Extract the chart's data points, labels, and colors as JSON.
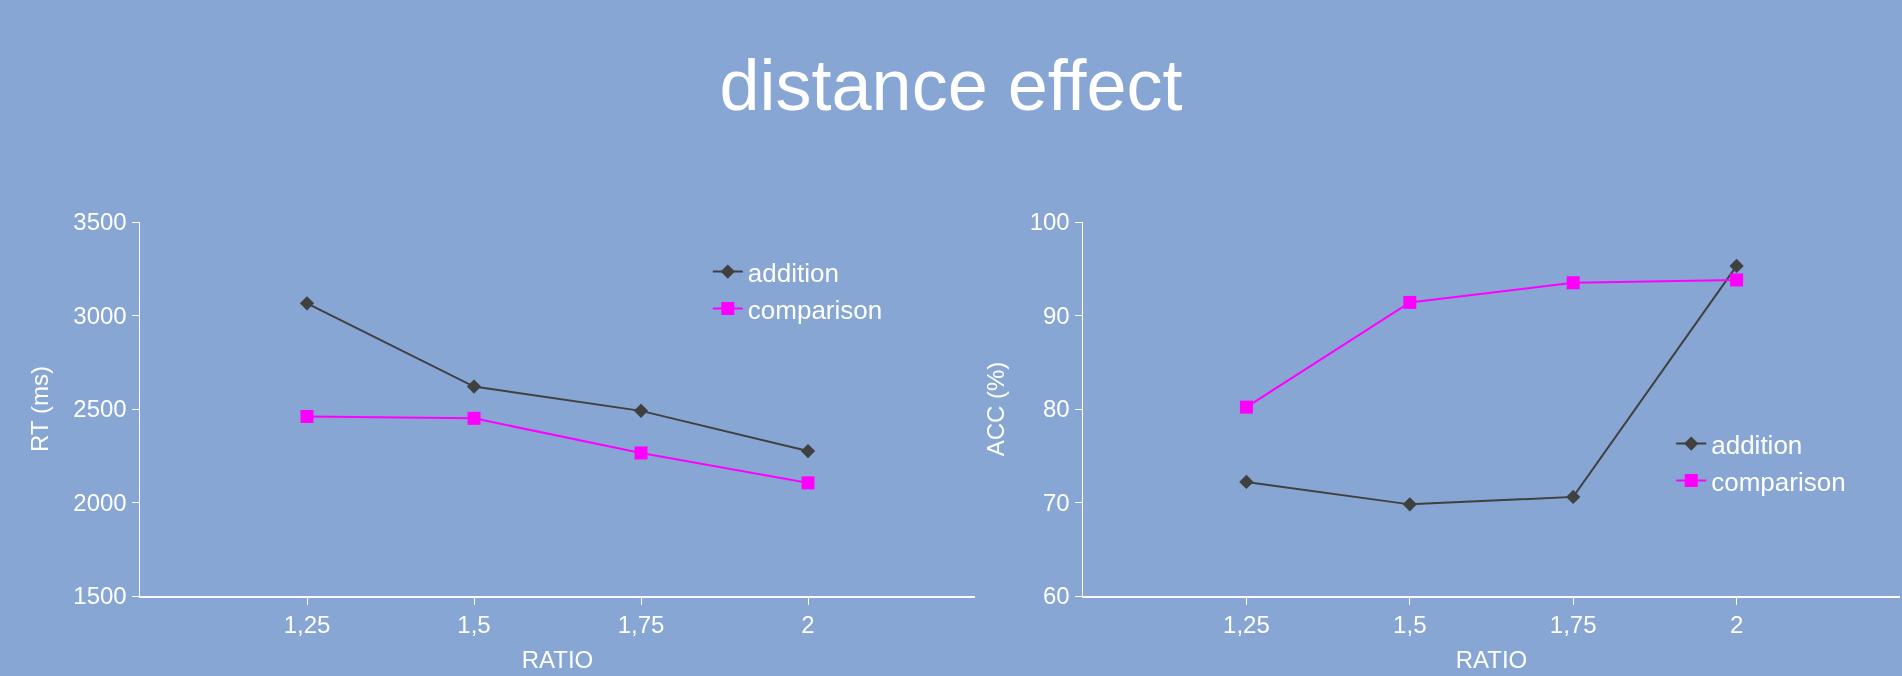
{
  "chart_data": [
    {
      "type": "line",
      "title": "distance effect",
      "xlabel": "RATIO",
      "ylabel": "RT (ms)",
      "categories": [
        "1,25",
        "1,5",
        "1,75",
        "2"
      ],
      "ylim": [
        1500,
        3500
      ],
      "yticks": [
        1500,
        2000,
        2500,
        3000,
        3500
      ],
      "grid": false,
      "legend": "top right",
      "series": [
        {
          "name": "addition",
          "color": "#404040",
          "marker": "diamond",
          "values": [
            3065,
            2620,
            2490,
            2275
          ]
        },
        {
          "name": "comparison",
          "color": "#ff00ff",
          "marker": "square",
          "values": [
            2460,
            2450,
            2265,
            2105
          ]
        }
      ]
    },
    {
      "type": "line",
      "xlabel": "RATIO",
      "ylabel": "ACC (%)",
      "categories": [
        "1,25",
        "1,5",
        "1,75",
        "2"
      ],
      "ylim": [
        60,
        100
      ],
      "yticks": [
        60,
        70,
        80,
        90,
        100
      ],
      "grid": false,
      "legend": "right",
      "series": [
        {
          "name": "addition",
          "color": "#404040",
          "marker": "diamond",
          "values": [
            72.2,
            69.8,
            70.6,
            95.3
          ]
        },
        {
          "name": "comparison",
          "color": "#ff00ff",
          "marker": "square",
          "values": [
            80.2,
            91.4,
            93.5,
            93.8
          ]
        }
      ]
    }
  ]
}
